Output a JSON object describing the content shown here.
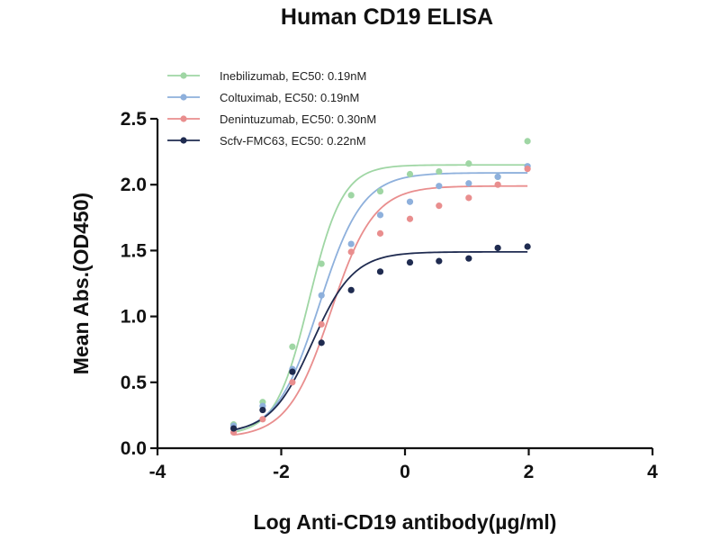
{
  "chart_data": {
    "type": "scatter",
    "title": "Human CD19 ELISA",
    "xlabel": "Log Anti-CD19 antibody(µg/ml)",
    "ylabel": "Mean Abs.(OD450)",
    "xlim": [
      -4,
      4
    ],
    "ylim": [
      0,
      2.5
    ],
    "xticks": [
      "-4",
      "-2",
      "0",
      "2",
      "4"
    ],
    "yticks": [
      "0.0",
      "0.5",
      "1.0",
      "1.5",
      "2.0",
      "2.5"
    ],
    "grid": false,
    "legend_position": "top-left",
    "fit": "four-parameter logistic curve per series",
    "x": [
      -2.77,
      -2.3,
      -1.82,
      -1.35,
      -0.87,
      -0.4,
      0.08,
      0.55,
      1.03,
      1.5,
      1.98
    ],
    "series": [
      {
        "name": "Inebilizumab, EC50: 0.19nM",
        "color": "#9fd6a4",
        "values": [
          0.18,
          0.35,
          0.77,
          1.4,
          1.92,
          1.95,
          2.08,
          2.1,
          2.16,
          2.06,
          2.33
        ],
        "fit": {
          "bottom": 0.1,
          "top": 2.15,
          "logec50": -1.55,
          "hill": 1.6
        }
      },
      {
        "name": "Coltuximab, EC50: 0.19nM",
        "color": "#8eb0dc",
        "values": [
          0.17,
          0.32,
          0.6,
          1.16,
          1.55,
          1.77,
          1.87,
          1.99,
          2.01,
          2.06,
          2.14
        ],
        "fit": {
          "bottom": 0.1,
          "top": 2.09,
          "logec50": -1.38,
          "hill": 1.25
        }
      },
      {
        "name": "Denintuzumab, EC50: 0.30nM",
        "color": "#e98e8e",
        "values": [
          0.12,
          0.22,
          0.5,
          0.94,
          1.49,
          1.63,
          1.74,
          1.84,
          1.9,
          2.0,
          2.12
        ],
        "fit": {
          "bottom": 0.08,
          "top": 1.99,
          "logec50": -1.2,
          "hill": 1.25
        }
      },
      {
        "name": "Scfv-FMC63, EC50: 0.22nM",
        "color": "#1f2b50",
        "values": [
          0.15,
          0.29,
          0.58,
          0.8,
          1.2,
          1.34,
          1.41,
          1.42,
          1.44,
          1.52,
          1.53
        ],
        "fit": {
          "bottom": 0.11,
          "top": 1.49,
          "logec50": -1.5,
          "hill": 1.3
        }
      }
    ]
  }
}
